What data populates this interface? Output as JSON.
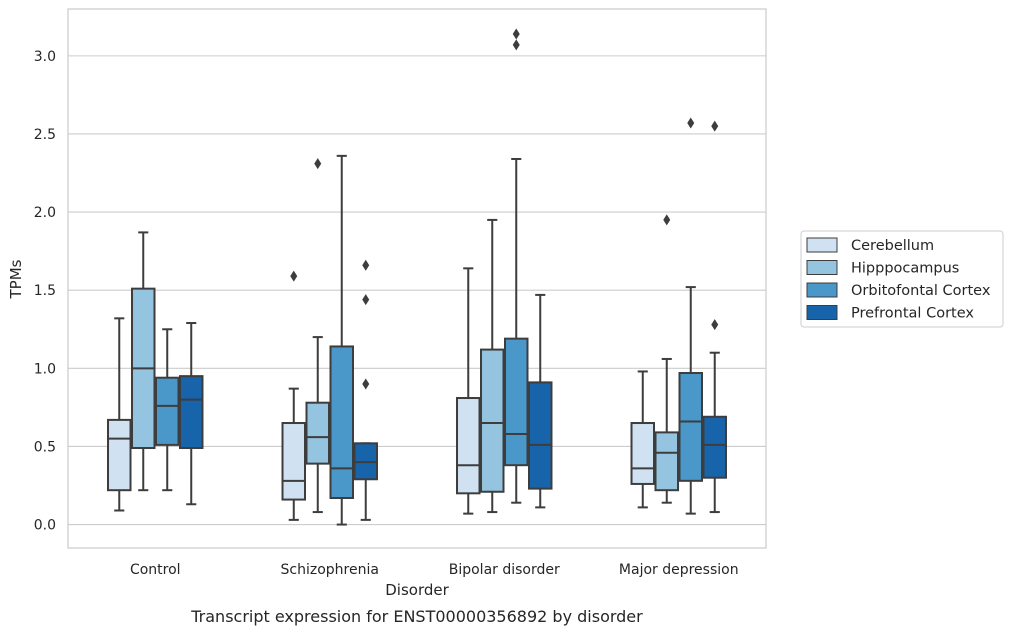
{
  "chart_data": {
    "type": "box",
    "title": "",
    "caption": "Transcript expression for ENST00000356892 by disorder",
    "xlabel": "Disorder",
    "ylabel": "TPMs",
    "ylim": [
      -0.15,
      3.3
    ],
    "yticks": [
      "0.0",
      "0.5",
      "1.0",
      "1.5",
      "2.0",
      "2.5",
      "3.0"
    ],
    "grid": "horizontal",
    "legend_position": "right",
    "categories": [
      "Control",
      "Schizophrenia",
      "Bipolar disorder",
      "Major depression"
    ],
    "series": [
      {
        "name": "Cerebellum",
        "color": "#d0e1f2",
        "boxes": [
          {
            "whisker_low": 0.09,
            "q1": 0.22,
            "median": 0.55,
            "q3": 0.67,
            "whisker_high": 1.32,
            "outliers": []
          },
          {
            "whisker_low": 0.03,
            "q1": 0.16,
            "median": 0.28,
            "q3": 0.65,
            "whisker_high": 0.87,
            "outliers": [
              1.59
            ]
          },
          {
            "whisker_low": 0.07,
            "q1": 0.2,
            "median": 0.38,
            "q3": 0.81,
            "whisker_high": 1.64,
            "outliers": []
          },
          {
            "whisker_low": 0.11,
            "q1": 0.26,
            "median": 0.36,
            "q3": 0.65,
            "whisker_high": 0.98,
            "outliers": []
          }
        ]
      },
      {
        "name": "Hipppocampus",
        "color": "#94c4df",
        "boxes": [
          {
            "whisker_low": 0.22,
            "q1": 0.49,
            "median": 1.0,
            "q3": 1.51,
            "whisker_high": 1.87,
            "outliers": []
          },
          {
            "whisker_low": 0.08,
            "q1": 0.39,
            "median": 0.56,
            "q3": 0.78,
            "whisker_high": 1.2,
            "outliers": [
              2.31
            ]
          },
          {
            "whisker_low": 0.08,
            "q1": 0.21,
            "median": 0.65,
            "q3": 1.12,
            "whisker_high": 1.95,
            "outliers": []
          },
          {
            "whisker_low": 0.14,
            "q1": 0.22,
            "median": 0.46,
            "q3": 0.59,
            "whisker_high": 1.06,
            "outliers": [
              1.95
            ]
          }
        ]
      },
      {
        "name": "Orbitofontal Cortex",
        "color": "#4a98c9",
        "boxes": [
          {
            "whisker_low": 0.22,
            "q1": 0.51,
            "median": 0.76,
            "q3": 0.94,
            "whisker_high": 1.25,
            "outliers": []
          },
          {
            "whisker_low": 0.0,
            "q1": 0.17,
            "median": 0.36,
            "q3": 1.14,
            "whisker_high": 2.36,
            "outliers": []
          },
          {
            "whisker_low": 0.14,
            "q1": 0.38,
            "median": 0.58,
            "q3": 1.19,
            "whisker_high": 2.34,
            "outliers": [
              3.07,
              3.14
            ]
          },
          {
            "whisker_low": 0.07,
            "q1": 0.28,
            "median": 0.66,
            "q3": 0.97,
            "whisker_high": 1.52,
            "outliers": [
              2.57
            ]
          }
        ]
      },
      {
        "name": "Prefrontal Cortex",
        "color": "#1764ab",
        "boxes": [
          {
            "whisker_low": 0.13,
            "q1": 0.49,
            "median": 0.8,
            "q3": 0.95,
            "whisker_high": 1.29,
            "outliers": []
          },
          {
            "whisker_low": 0.03,
            "q1": 0.29,
            "median": 0.4,
            "q3": 0.52,
            "whisker_high": 0.52,
            "outliers": [
              0.9,
              1.44,
              1.66
            ]
          },
          {
            "whisker_low": 0.11,
            "q1": 0.23,
            "median": 0.51,
            "q3": 0.91,
            "whisker_high": 1.47,
            "outliers": []
          },
          {
            "whisker_low": 0.08,
            "q1": 0.3,
            "median": 0.51,
            "q3": 0.69,
            "whisker_high": 1.1,
            "outliers": [
              1.28,
              2.55
            ]
          }
        ]
      }
    ]
  }
}
